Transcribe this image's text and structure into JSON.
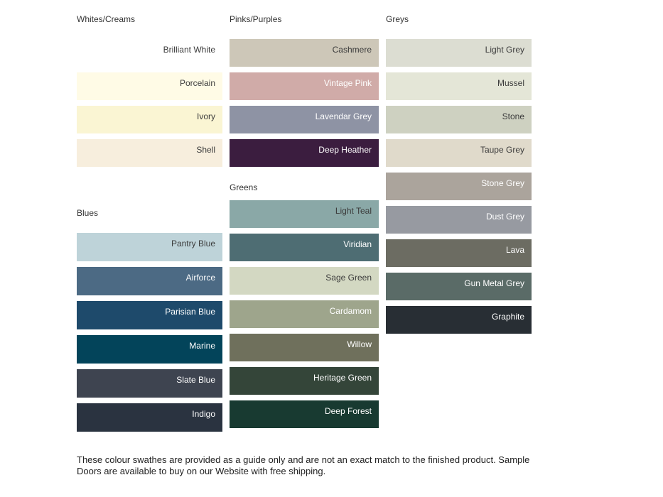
{
  "page": {
    "background": "#ffffff",
    "header_text_color": "#333333",
    "dark_label_color": "#3b3b3b",
    "light_label_color": "#ffffff"
  },
  "palette": {
    "columns": [
      {
        "groups": [
          {
            "id": "whites-creams",
            "label": "Whites/Creams",
            "swatches": [
              {
                "name": "Brilliant White",
                "hex": "#ffffff",
                "label_color": "dark"
              },
              {
                "name": "Porcelain",
                "hex": "#fffbe6",
                "label_color": "dark"
              },
              {
                "name": "Ivory",
                "hex": "#faf5d3",
                "label_color": "dark"
              },
              {
                "name": "Shell",
                "hex": "#f7eedd",
                "label_color": "dark"
              }
            ]
          },
          {
            "id": "blues",
            "label": "Blues",
            "swatches": [
              {
                "name": "Pantry Blue",
                "hex": "#bed3d9",
                "label_color": "dark"
              },
              {
                "name": "Airforce",
                "hex": "#4c6a84",
                "label_color": "light"
              },
              {
                "name": "Parisian Blue",
                "hex": "#1e4a6b",
                "label_color": "light"
              },
              {
                "name": "Marine",
                "hex": "#03445a",
                "label_color": "light"
              },
              {
                "name": "Slate Blue",
                "hex": "#3e4450",
                "label_color": "light"
              },
              {
                "name": "Indigo",
                "hex": "#2a3340",
                "label_color": "light"
              }
            ]
          }
        ]
      },
      {
        "groups": [
          {
            "id": "pinks-purples",
            "label": "Pinks/Purples",
            "swatches": [
              {
                "name": "Cashmere",
                "hex": "#cdc7b8",
                "label_color": "dark"
              },
              {
                "name": "Vintage Pink",
                "hex": "#d0aba8",
                "label_color": "light"
              },
              {
                "name": "Lavendar Grey",
                "hex": "#8e93a4",
                "label_color": "light"
              },
              {
                "name": "Deep Heather",
                "hex": "#3b1d3f",
                "label_color": "light"
              }
            ]
          },
          {
            "id": "greens",
            "label": "Greens",
            "swatches": [
              {
                "name": "Light Teal",
                "hex": "#8aa8a7",
                "label_color": "dark"
              },
              {
                "name": "Viridian",
                "hex": "#4e6d73",
                "label_color": "light"
              },
              {
                "name": "Sage Green",
                "hex": "#d3d8c2",
                "label_color": "dark"
              },
              {
                "name": "Cardamom",
                "hex": "#9ea58c",
                "label_color": "light"
              },
              {
                "name": "Willow",
                "hex": "#6f705c",
                "label_color": "light"
              },
              {
                "name": "Heritage Green",
                "hex": "#344539",
                "label_color": "light"
              },
              {
                "name": "Deep Forest",
                "hex": "#183a31",
                "label_color": "light"
              }
            ]
          }
        ]
      },
      {
        "groups": [
          {
            "id": "greys",
            "label": "Greys",
            "swatches": [
              {
                "name": "Light Grey",
                "hex": "#dcddd2",
                "label_color": "dark"
              },
              {
                "name": "Mussel",
                "hex": "#e4e6d7",
                "label_color": "dark"
              },
              {
                "name": "Stone",
                "hex": "#ced1c1",
                "label_color": "dark"
              },
              {
                "name": "Taupe Grey",
                "hex": "#e0dacb",
                "label_color": "dark"
              },
              {
                "name": "Stone Grey",
                "hex": "#aba49c",
                "label_color": "light"
              },
              {
                "name": "Dust Grey",
                "hex": "#979aa1",
                "label_color": "light"
              },
              {
                "name": "Lava",
                "hex": "#6c6c62",
                "label_color": "light"
              },
              {
                "name": "Gun Metal Grey",
                "hex": "#5a6b67",
                "label_color": "light"
              },
              {
                "name": "Graphite",
                "hex": "#282e34",
                "label_color": "light"
              }
            ]
          }
        ]
      }
    ]
  },
  "footnote": {
    "lines": [
      "These colour swathes are provided as a guide only and are not an exact match to the finished product.  Sample",
      "Doors are available to buy on our Website with free shipping."
    ]
  }
}
